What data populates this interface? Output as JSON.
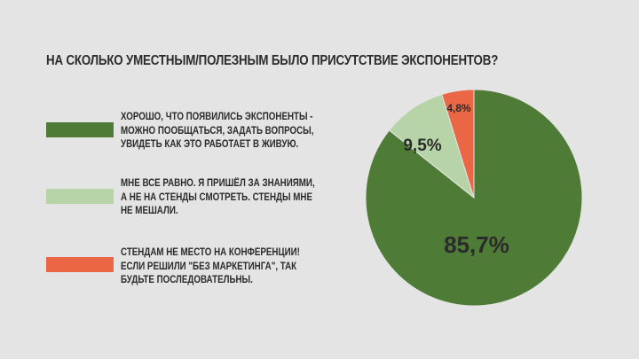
{
  "chart_data": {
    "type": "pie",
    "title": "НА СКОЛЬКО УМЕСТНЫМ/ПОЛЕЗНЫМ БЫЛО ПРИСУТСТВИЕ ЭКСПОНЕНТОВ?",
    "slices": [
      {
        "label": "ХОРОШО, ЧТО ПОЯВИЛИСЬ ЭКСПОНЕНТЫ -\nМОЖНО ПООБЩАТЬСЯ, ЗАДАТЬ ВОПРОСЫ,\nУВИДЕТЬ КАК ЭТО РАБОТАЕТ В ЖИВУЮ.",
        "value": 85.7,
        "value_label": "85,7%",
        "color": "#4e7b35"
      },
      {
        "label": "МНЕ ВСЕ РАВНО. Я ПРИШЁЛ ЗА ЗНАНИЯМИ,\nА НЕ НА СТЕНДЫ СМОТРЕТЬ. СТЕНДЫ МНЕ\nНЕ МЕШАЛИ.",
        "value": 9.5,
        "value_label": "9,5%",
        "color": "#b6d4a7"
      },
      {
        "label": "СТЕНДАМ НЕ МЕСТО НА КОНФЕРЕНЦИИ!\nЕСЛИ РЕШИЛИ \"БЕЗ МАРКЕТИНГА\", ТАК\nБУДЬТЕ ПОСЛЕДОВАТЕЛЬНЫ.",
        "value": 4.8,
        "value_label": "4,8%",
        "color": "#ea6645"
      }
    ],
    "legend_placement": "left"
  }
}
